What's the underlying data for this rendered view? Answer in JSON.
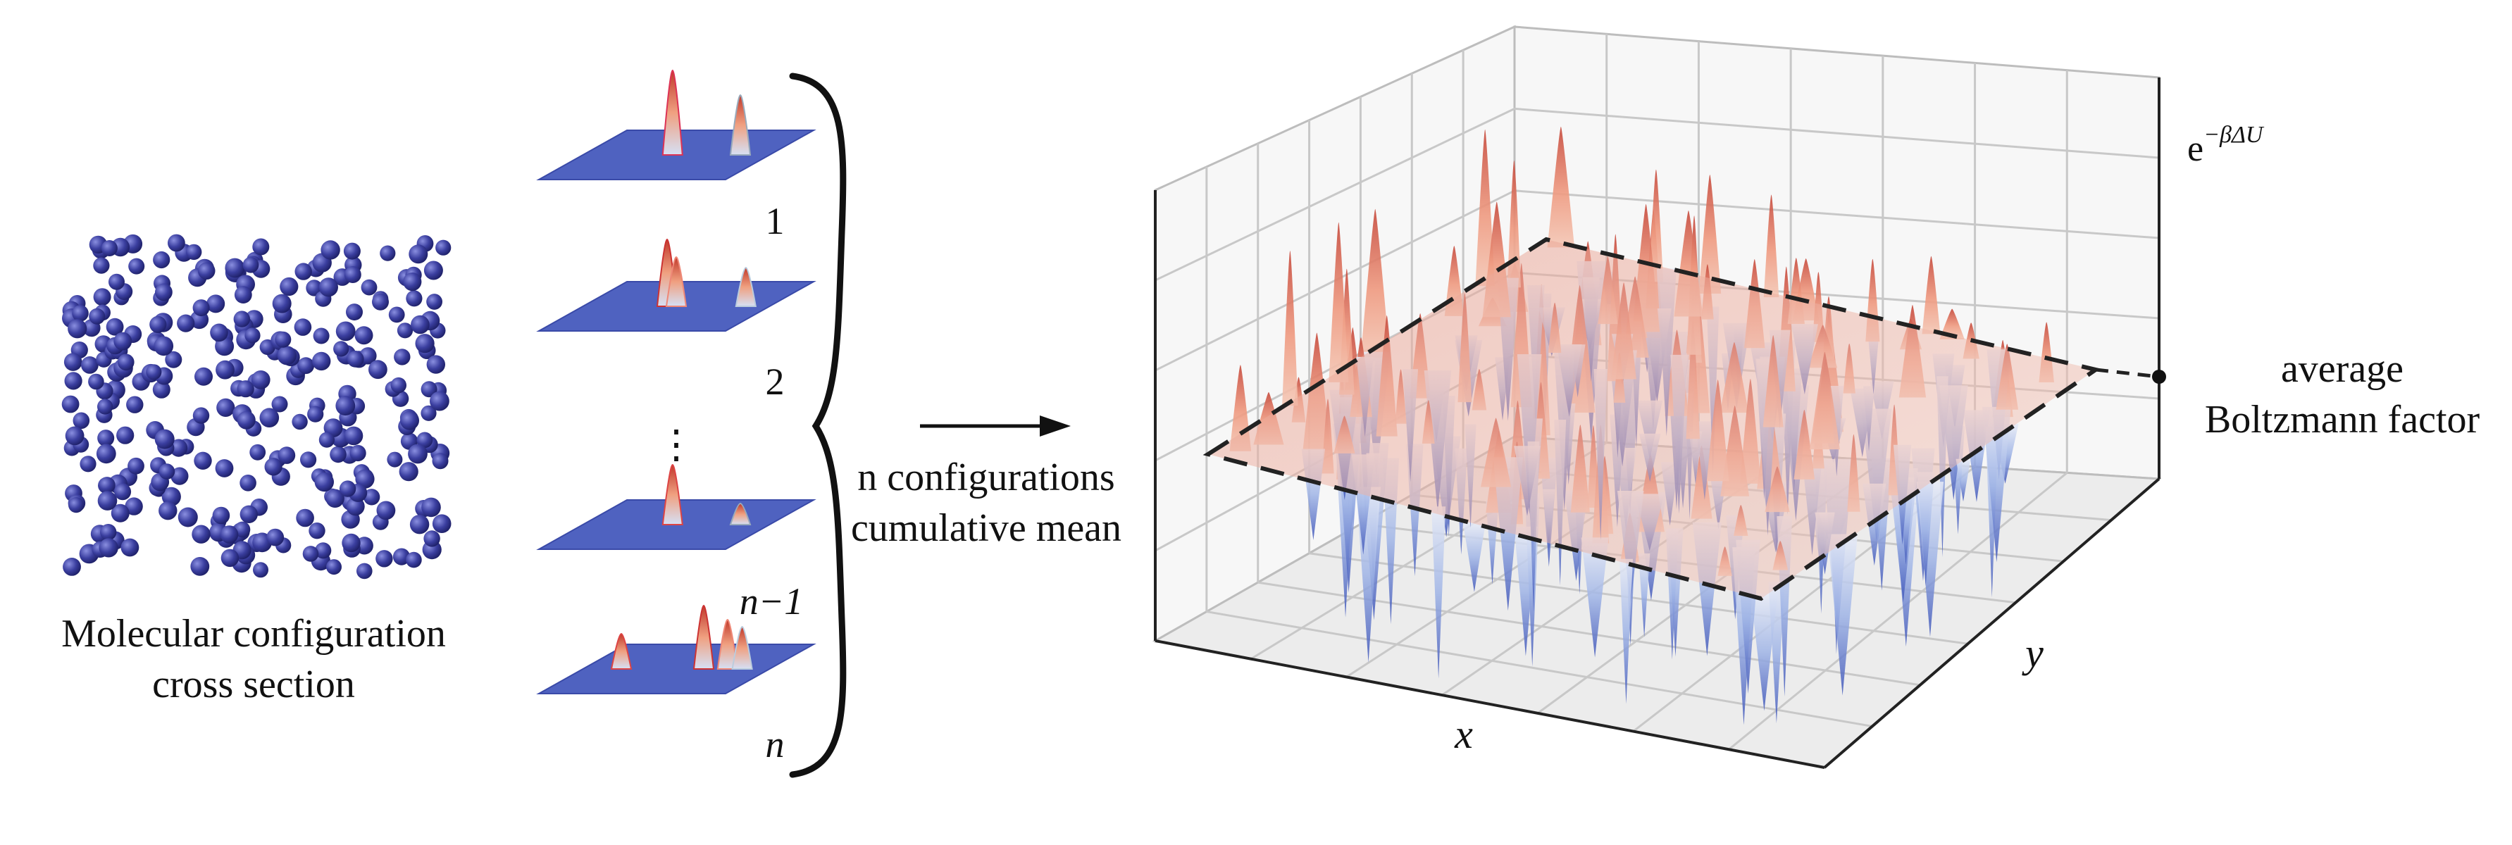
{
  "left": {
    "caption_line1": "Molecular configuration",
    "caption_line2": "cross section"
  },
  "stack": {
    "labels": [
      "1",
      "2",
      "n−1",
      "n"
    ],
    "ellipsis": "⋮"
  },
  "brace": {
    "caption_line1": "n configurations",
    "caption_line2": "cumulative mean"
  },
  "surface": {
    "axis_x": "x",
    "axis_y": "y",
    "axis_z_base": "e",
    "axis_z_exp": "−βΔU",
    "avg_line1": "average",
    "avg_line2": "Boltzmann factor"
  },
  "colors": {
    "molecule": "#3b3fa0",
    "plane": "#5063c2",
    "high": "#d8503e",
    "low": "#4a62c8",
    "grid": "#c8c8c8"
  }
}
